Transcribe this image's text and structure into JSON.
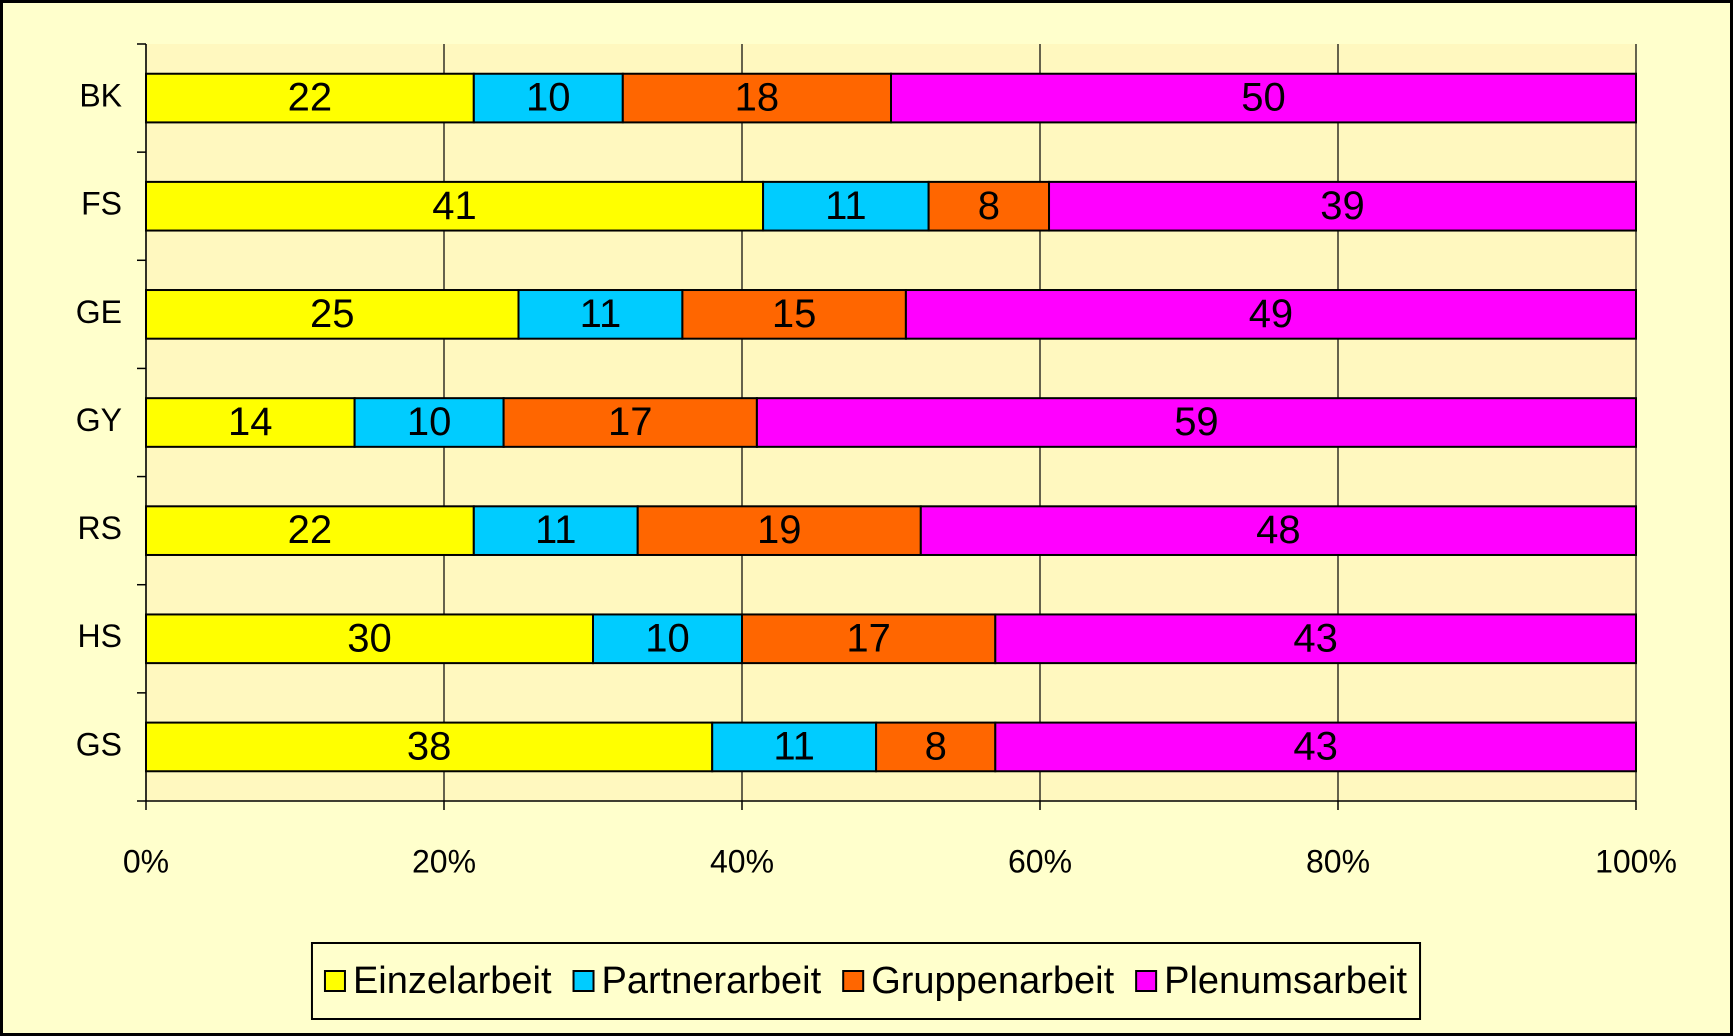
{
  "chart_data": {
    "type": "bar",
    "orientation": "horizontal",
    "stacked": "percent",
    "categories": [
      "BK",
      "FS",
      "GE",
      "GY",
      "RS",
      "HS",
      "GS"
    ],
    "series": [
      {
        "name": "Einzelarbeit",
        "color": "#FFFF00",
        "values": [
          22,
          41,
          25,
          14,
          22,
          30,
          38
        ]
      },
      {
        "name": "Partnerarbeit",
        "color": "#00CCFF",
        "values": [
          10,
          11,
          11,
          10,
          11,
          10,
          11
        ]
      },
      {
        "name": "Gruppenarbeit",
        "color": "#FF6600",
        "values": [
          18,
          8,
          15,
          17,
          19,
          17,
          8
        ]
      },
      {
        "name": "Plenumsarbeit",
        "color": "#FF00FF",
        "values": [
          50,
          39,
          49,
          59,
          48,
          43,
          43
        ]
      }
    ],
    "xlim": [
      0,
      100
    ],
    "xticks": [
      {
        "value": 0,
        "label": "0%"
      },
      {
        "value": 20,
        "label": "20%"
      },
      {
        "value": 40,
        "label": "40%"
      },
      {
        "value": 60,
        "label": "60%"
      },
      {
        "value": 80,
        "label": "80%"
      },
      {
        "value": 100,
        "label": "100%"
      }
    ],
    "grid": true,
    "legend": "bottom"
  }
}
